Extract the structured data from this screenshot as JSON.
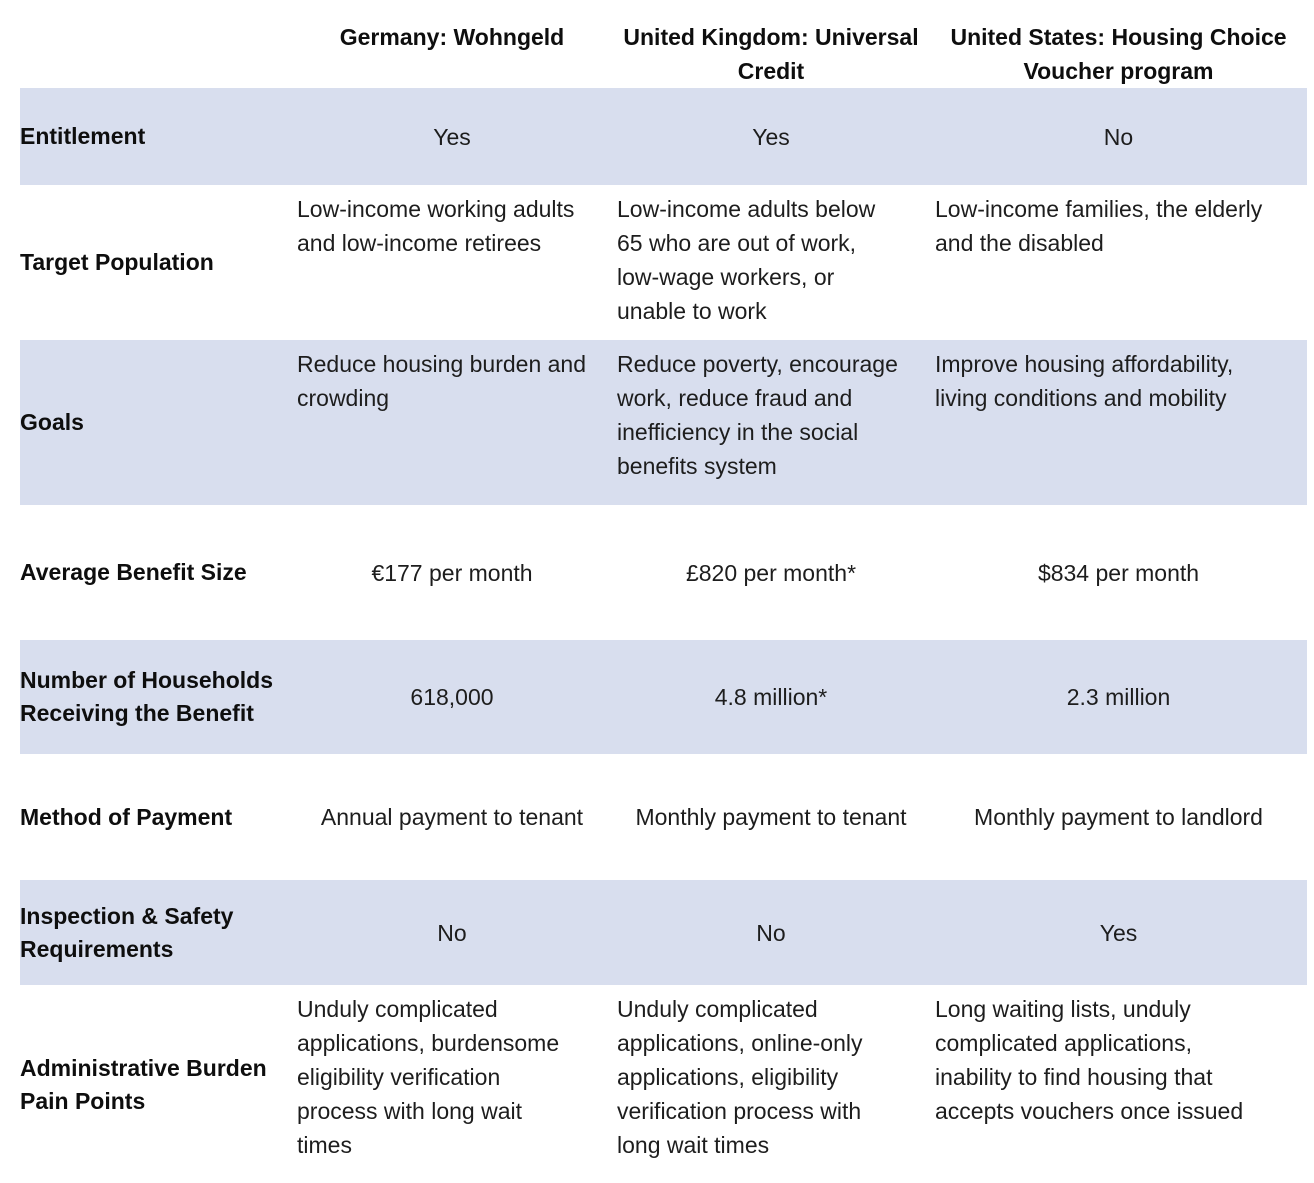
{
  "table": {
    "columns": [
      "Germany: Wohngeld",
      "United Kingdom: Universal Credit",
      "United States: Housing Choice Voucher program"
    ],
    "colors": {
      "row_shade": "#d8deee",
      "text": "#1d1d1d"
    },
    "rows": [
      {
        "label": "Entitlement",
        "shaded": true,
        "para": false,
        "cells": [
          "Yes",
          "Yes",
          "No"
        ]
      },
      {
        "label": "Target Population",
        "shaded": false,
        "para": true,
        "cells": [
          "Low-income working adults\nand low-income retirees",
          "Low-income adults below\n65 who are out of work,\nlow-wage workers, or\nunable to work",
          "Low-income families, the elderly\nand the disabled"
        ]
      },
      {
        "label": "Goals",
        "shaded": true,
        "para": true,
        "cells": [
          "Reduce housing burden and\ncrowding",
          "Reduce poverty, encourage\nwork, reduce fraud and\ninefficiency in the social\nbenefits system",
          "Improve housing affordability,\nliving conditions and mobility"
        ]
      },
      {
        "label": "Average Benefit Size",
        "shaded": false,
        "para": false,
        "cells": [
          "€177 per month",
          "£820 per month*",
          "$834 per month"
        ]
      },
      {
        "label": "Number of Households\nReceiving the Benefit",
        "shaded": true,
        "para": false,
        "cells": [
          "618,000",
          "4.8 million*",
          "2.3 million"
        ]
      },
      {
        "label": "Method of Payment",
        "shaded": false,
        "para": false,
        "cells": [
          "Annual payment to tenant",
          "Monthly payment to tenant",
          "Monthly payment to landlord"
        ]
      },
      {
        "label": "Inspection & Safety\nRequirements",
        "shaded": true,
        "para": false,
        "cells": [
          "No",
          "No",
          "Yes"
        ]
      },
      {
        "label": "Administrative Burden\nPain Points",
        "shaded": false,
        "para": true,
        "cells": [
          "Unduly complicated\napplications, burdensome\neligibility verification\nprocess with long wait\ntimes",
          "Unduly complicated\napplications, online-only\napplications, eligibility\nverification process with\nlong wait times",
          "Long waiting lists, unduly\ncomplicated applications,\ninability to find housing that\naccepts vouchers once issued"
        ]
      }
    ]
  }
}
